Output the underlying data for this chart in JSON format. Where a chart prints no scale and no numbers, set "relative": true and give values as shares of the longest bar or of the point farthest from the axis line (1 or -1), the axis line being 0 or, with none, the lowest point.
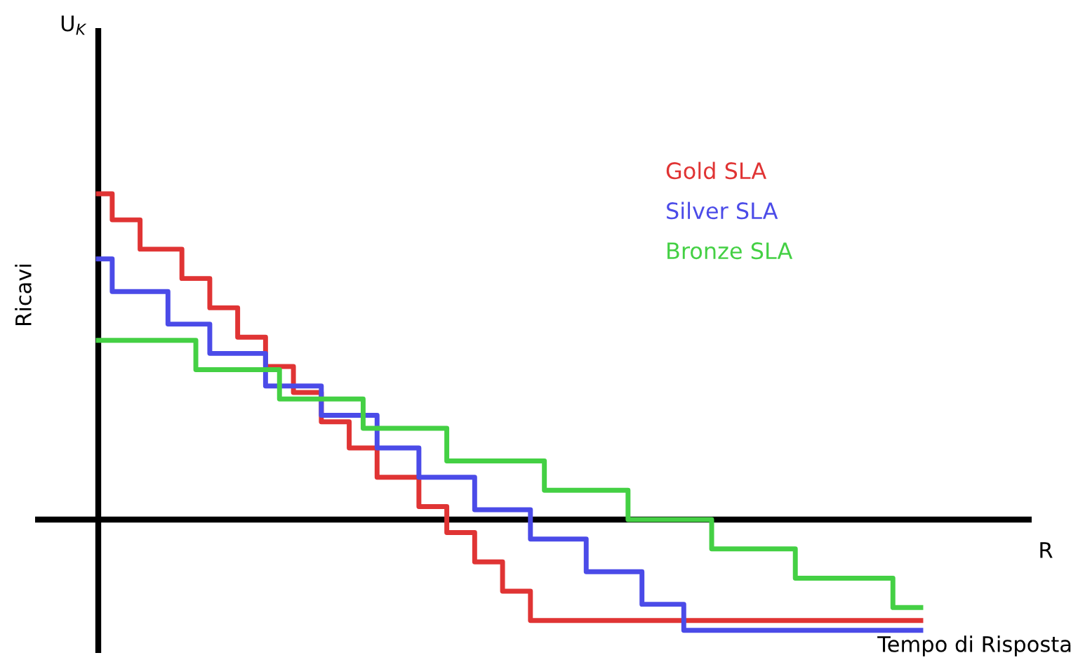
{
  "chart_data": {
    "type": "step",
    "relative": true,
    "xlabel": "Tempo di Risposta",
    "ylabel": "Ricavi",
    "annotations": [
      "U$_{K}$",
      "R"
    ],
    "marker": "none",
    "line_style": "solid",
    "categories": [
      null,
      null,
      null,
      null,
      null,
      null,
      null,
      null,
      null,
      null,
      null,
      null,
      null,
      null,
      null,
      null,
      null,
      null,
      null,
      null,
      null,
      null,
      null,
      null,
      null,
      null,
      null,
      null,
      null,
      null,
      null,
      null,
      null,
      null,
      null,
      null,
      null,
      null,
      null,
      null,
      null,
      null,
      null,
      null,
      null,
      null,
      null,
      null,
      null,
      null,
      null,
      null,
      null,
      null,
      null,
      null,
      null,
      null,
      null,
      null
    ],
    "series": [
      {
        "name": "Gold SLA",
        "color": "#e03434",
        "values": [
          1.0,
          0.92,
          0.92,
          0.83,
          0.83,
          0.83,
          0.74,
          0.74,
          0.65,
          0.65,
          0.56,
          0.56,
          0.47,
          0.47,
          0.39,
          0.39,
          0.3,
          0.3,
          0.22,
          0.22,
          0.13,
          0.13,
          0.13,
          0.04,
          0.04,
          -0.04,
          -0.04,
          -0.13,
          -0.13,
          -0.22,
          -0.22,
          -0.31,
          -0.31,
          -0.31,
          -0.31,
          -0.31,
          -0.31,
          -0.31,
          -0.31,
          -0.31,
          -0.31,
          -0.31,
          -0.31,
          -0.31,
          -0.31,
          -0.31,
          -0.31,
          -0.31,
          -0.31,
          -0.31,
          -0.31,
          -0.31,
          -0.31,
          -0.31,
          -0.31,
          -0.31,
          -0.31,
          -0.31,
          -0.31,
          -0.31
        ]
      },
      {
        "name": "Silver SLA",
        "color": "#4b4be8",
        "values": [
          0.8,
          0.7,
          0.7,
          0.7,
          0.7,
          0.6,
          0.6,
          0.6,
          0.51,
          0.51,
          0.51,
          0.51,
          0.41,
          0.41,
          0.41,
          0.41,
          0.32,
          0.32,
          0.32,
          0.32,
          0.22,
          0.22,
          0.22,
          0.13,
          0.13,
          0.13,
          0.13,
          0.03,
          0.03,
          0.03,
          0.03,
          -0.06,
          -0.06,
          -0.06,
          -0.06,
          -0.16,
          -0.16,
          -0.16,
          -0.16,
          -0.26,
          -0.26,
          -0.26,
          -0.34,
          -0.34,
          -0.34,
          -0.34,
          -0.34,
          -0.34,
          -0.34,
          -0.34,
          -0.34,
          -0.34,
          -0.34,
          -0.34,
          -0.34,
          -0.34,
          -0.34,
          -0.34,
          -0.34,
          -0.34
        ]
      },
      {
        "name": "Bronze SLA",
        "color": "#44d044",
        "values": [
          0.55,
          0.55,
          0.55,
          0.55,
          0.55,
          0.55,
          0.55,
          0.46,
          0.46,
          0.46,
          0.46,
          0.46,
          0.46,
          0.37,
          0.37,
          0.37,
          0.37,
          0.37,
          0.37,
          0.28,
          0.28,
          0.28,
          0.28,
          0.28,
          0.28,
          0.18,
          0.18,
          0.18,
          0.18,
          0.18,
          0.18,
          0.18,
          0.09,
          0.09,
          0.09,
          0.09,
          0.09,
          0.09,
          0,
          0,
          0,
          0,
          0,
          0,
          -0.09,
          -0.09,
          -0.09,
          -0.09,
          -0.09,
          -0.09,
          -0.18,
          -0.18,
          -0.18,
          -0.18,
          -0.18,
          -0.18,
          -0.18,
          -0.27,
          -0.27,
          -0.27
        ]
      }
    ]
  }
}
